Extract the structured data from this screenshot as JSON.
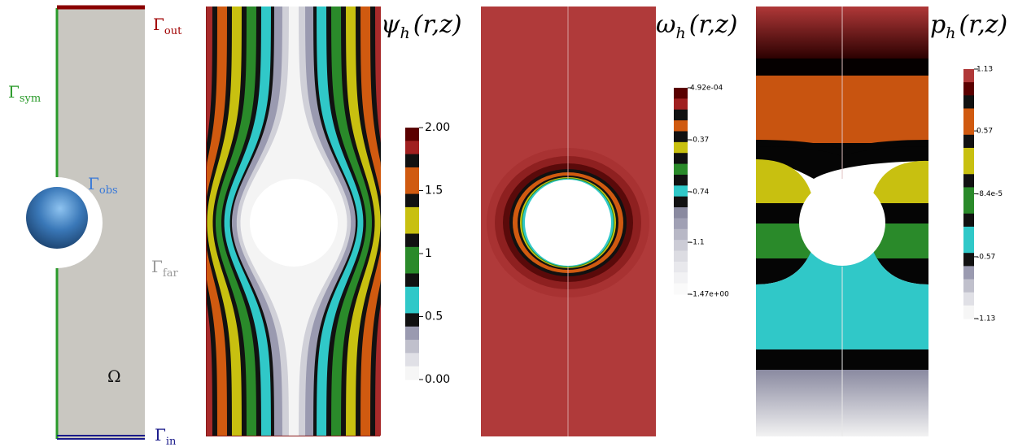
{
  "schematic": {
    "labels": [
      {
        "symbol": "Γ",
        "sub": "out"
      },
      {
        "symbol": "Γ",
        "sub": "sym"
      },
      {
        "symbol": "Γ",
        "sub": "obs"
      },
      {
        "symbol": "Γ",
        "sub": "far"
      },
      {
        "symbol": "Ω"
      },
      {
        "symbol": "Γ",
        "sub": "in"
      }
    ]
  },
  "panels": [
    {
      "title": {
        "symbol": "ψ",
        "sub": "h",
        "args": "(r,z)"
      },
      "colorbar": {
        "lim": [
          0,
          2
        ],
        "ticks": [
          {
            "value": 2,
            "label": "2.00"
          },
          {
            "value": 1.5,
            "label": "1.5"
          },
          1,
          {
            "value": 0.5,
            "label": "0.5"
          },
          {
            "value": 0,
            "label": "0.00"
          }
        ]
      }
    },
    {
      "title": {
        "symbol": "ω",
        "sub": "h",
        "args": "(r,z)"
      },
      "colorbar": {
        "lim": [
          -1.47,
          0.000492
        ],
        "ticks": [
          {
            "value": 0.000492,
            "label": "4.92e-04"
          },
          -0.37,
          -0.74,
          -1.1,
          {
            "value": -1.47,
            "label": "-1.47e+00"
          }
        ]
      }
    },
    {
      "title": {
        "symbol": "p",
        "sub": "h",
        "args": "(r,z)"
      },
      "colorbar": {
        "lim": [
          -1.13,
          1.13
        ],
        "ticks": [
          1.13,
          0.57,
          {
            "value": -8.4e-05,
            "label": "-8.4e-5"
          },
          -0.57,
          -1.13
        ]
      }
    }
  ]
}
